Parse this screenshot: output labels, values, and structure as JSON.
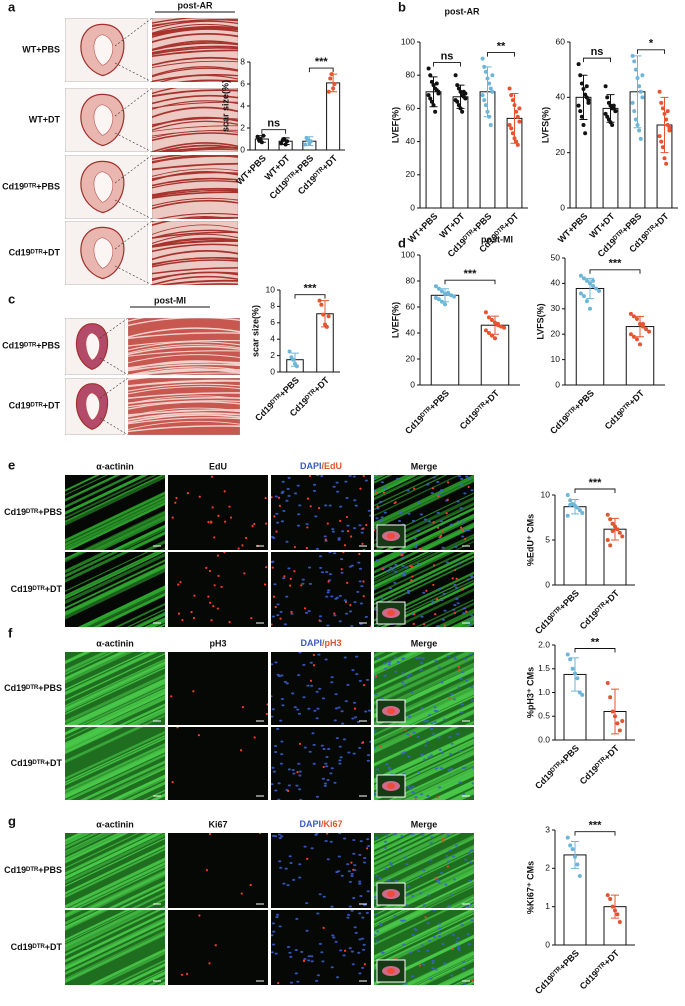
{
  "panels": {
    "a": {
      "letter": "a",
      "header": "post-AR",
      "rows": [
        "WT+PBS",
        "WT+DT",
        "Cd19ᴰᵀᴿ+PBS",
        "Cd19ᴰᵀᴿ+DT"
      ]
    },
    "b": {
      "letter": "b",
      "header": "post-AR"
    },
    "c": {
      "letter": "c",
      "header": "post-MI",
      "rows": [
        "Cd19ᴰᵀᴿ+PBS",
        "Cd19ᴰᵀᴿ+DT"
      ]
    },
    "d": {
      "letter": "d",
      "header": "post-MI"
    },
    "e": {
      "letter": "e",
      "columns": [
        "α-actinin",
        "EdU",
        [
          "DAPI",
          "/EdU"
        ],
        "Merge"
      ],
      "rows": [
        "Cd19ᴰᵀᴿ+PBS",
        "Cd19ᴰᵀᴿ+DT"
      ]
    },
    "f": {
      "letter": "f",
      "columns": [
        "α-actinin",
        "pH3",
        [
          "DAPI",
          "/pH3"
        ],
        "Merge"
      ],
      "rows": [
        "Cd19ᴰᵀᴿ+PBS",
        "Cd19ᴰᵀᴿ+DT"
      ]
    },
    "g": {
      "letter": "g",
      "columns": [
        "α-actinin",
        "Ki67",
        [
          "DAPI",
          "/Ki67"
        ],
        "Merge"
      ],
      "rows": [
        "Cd19ᴰᵀᴿ+PBS",
        "Cd19ᴰᵀᴿ+DT"
      ]
    }
  },
  "chart_data": [
    {
      "type": "bar",
      "ylabel": "scar size(%)",
      "categories": [
        "WT+PBS",
        "WT+DT",
        "Cd19ᴰᵀᴿ+PBS",
        "Cd19ᴰᵀᴿ+DT"
      ],
      "values": [
        1.0,
        0.8,
        0.8,
        6.1
      ],
      "errors": [
        0.3,
        0.3,
        0.4,
        0.8
      ],
      "points": [
        [
          1.2,
          0.9,
          1.0,
          0.7,
          1.3
        ],
        [
          0.6,
          0.9,
          1.0,
          0.5,
          0.8
        ],
        [
          0.5,
          1.1,
          0.9,
          0.6,
          0.8
        ],
        [
          5.3,
          6.5,
          6.9,
          5.6,
          6.0
        ]
      ],
      "colors": [
        "#111111",
        "#111111",
        "#6db6d9",
        "#e8532f"
      ],
      "ylim": [
        0,
        8
      ],
      "yticks": [
        0,
        2,
        4,
        6,
        8
      ],
      "annotations": [
        "ns",
        "***"
      ]
    },
    {
      "type": "bar",
      "ylabel": "LVEF(%)",
      "categories": [
        "WT+PBS",
        "WT+DT",
        "Cd19ᴰᵀᴿ+PBS",
        "Cd19ᴰᵀᴿ+DT"
      ],
      "values": [
        70,
        67,
        70,
        54
      ],
      "errors": [
        9,
        7,
        15,
        15
      ],
      "points": [
        [
          84,
          80,
          76,
          74,
          72,
          71,
          70,
          68,
          66,
          64,
          62,
          58,
          75,
          69
        ],
        [
          80,
          74,
          72,
          70,
          68,
          67,
          66,
          65,
          64,
          62,
          60,
          58,
          70,
          69
        ],
        [
          90,
          85,
          82,
          78,
          75,
          72,
          70,
          68,
          65,
          62,
          58,
          55,
          50,
          80
        ],
        [
          72,
          68,
          65,
          62,
          58,
          55,
          52,
          50,
          48,
          45,
          42,
          40,
          38,
          60
        ]
      ],
      "colors": [
        "#111111",
        "#111111",
        "#6db6d9",
        "#e8532f"
      ],
      "ylim": [
        0,
        100
      ],
      "yticks": [
        0,
        20,
        40,
        60,
        80,
        100
      ],
      "annotations": [
        "ns",
        "**"
      ]
    },
    {
      "type": "bar",
      "ylabel": "LVFS(%)",
      "categories": [
        "WT+PBS",
        "WT+DT",
        "Cd19ᴰᵀᴿ+PBS",
        "Cd19ᴰᵀᴿ+DT"
      ],
      "values": [
        40,
        36,
        42,
        30
      ],
      "errors": [
        8,
        5,
        13,
        10
      ],
      "points": [
        [
          52,
          48,
          45,
          43,
          41,
          40,
          38,
          37,
          35,
          33,
          30,
          27,
          44,
          39
        ],
        [
          44,
          40,
          38,
          37,
          36,
          36,
          35,
          34,
          33,
          32,
          31,
          30,
          37,
          35
        ],
        [
          55,
          53,
          50,
          47,
          44,
          42,
          40,
          38,
          35,
          32,
          30,
          28,
          25,
          48
        ],
        [
          42,
          38,
          36,
          34,
          32,
          30,
          28,
          26,
          24,
          22,
          18,
          16,
          35,
          29
        ]
      ],
      "colors": [
        "#111111",
        "#111111",
        "#6db6d9",
        "#e8532f"
      ],
      "ylim": [
        0,
        60
      ],
      "yticks": [
        0,
        20,
        40,
        60
      ],
      "annotations": [
        "ns",
        "*"
      ]
    },
    {
      "type": "bar",
      "ylabel": "scar size(%)",
      "categories": [
        "Cd19ᴰᵀᴿ+PBS",
        "Cd19ᴰᵀᴿ+DT"
      ],
      "values": [
        1.5,
        7.1
      ],
      "errors": [
        0.8,
        1.6
      ],
      "points": [
        [
          2.5,
          1.8,
          1.5,
          1.0,
          0.7
        ],
        [
          8.7,
          8.2,
          7.0,
          5.8,
          5.5,
          6.8
        ]
      ],
      "colors": [
        "#6db6d9",
        "#e8532f"
      ],
      "ylim": [
        0,
        10
      ],
      "yticks": [
        0,
        2,
        4,
        6,
        8,
        10
      ],
      "annotations": [
        "***"
      ]
    },
    {
      "type": "bar",
      "ylabel": "LVEF(%)",
      "categories": [
        "Cd19ᴰᵀᴿ+PBS",
        "Cd19ᴰᵀᴿ+DT"
      ],
      "values": [
        69,
        46
      ],
      "errors": [
        5,
        7
      ],
      "points": [
        [
          76,
          74,
          72,
          70,
          70,
          69,
          68,
          67,
          66,
          64,
          62,
          71
        ],
        [
          56,
          52,
          50,
          48,
          46,
          45,
          44,
          42,
          40,
          38,
          36,
          47
        ]
      ],
      "colors": [
        "#6db6d9",
        "#e8532f"
      ],
      "ylim": [
        0,
        100
      ],
      "yticks": [
        0,
        20,
        40,
        60,
        80,
        100
      ],
      "annotations": [
        "***"
      ]
    },
    {
      "type": "bar",
      "ylabel": "LVFS(%)",
      "categories": [
        "Cd19ᴰᵀᴿ+PBS",
        "Cd19ᴰᵀᴿ+DT"
      ],
      "values": [
        38,
        23
      ],
      "errors": [
        4,
        4
      ],
      "points": [
        [
          43,
          42,
          41,
          40,
          39,
          38,
          37,
          36,
          35,
          33,
          30,
          41
        ],
        [
          28,
          27,
          26,
          24,
          23,
          22,
          21,
          20,
          19,
          18,
          16,
          24
        ]
      ],
      "colors": [
        "#6db6d9",
        "#e8532f"
      ],
      "ylim": [
        0,
        50
      ],
      "yticks": [
        0,
        10,
        20,
        30,
        40,
        50
      ],
      "annotations": [
        "***"
      ]
    },
    {
      "type": "bar",
      "ylabel": "%EdU⁺ CMs",
      "categories": [
        "Cd19ᴰᵀᴿ+PBS",
        "Cd19ᴰᵀᴿ+DT"
      ],
      "values": [
        8.7,
        6.2
      ],
      "errors": [
        0.8,
        1.2
      ],
      "points": [
        [
          10.0,
          9.4,
          9.0,
          8.8,
          8.6,
          8.3,
          8.0,
          7.7,
          8.9
        ],
        [
          7.8,
          7.3,
          6.8,
          6.5,
          6.2,
          5.8,
          5.4,
          5.0,
          4.4,
          6.0
        ]
      ],
      "colors": [
        "#6db6d9",
        "#e8532f"
      ],
      "ylim": [
        0,
        10
      ],
      "yticks": [
        0,
        5,
        10
      ],
      "annotations": [
        "***"
      ]
    },
    {
      "type": "bar",
      "ylabel": "%pH3⁺ CMs",
      "categories": [
        "Cd19ᴰᵀᴿ+PBS",
        "Cd19ᴰᵀᴿ+DT"
      ],
      "values": [
        1.38,
        0.6
      ],
      "errors": [
        0.35,
        0.47
      ],
      "points": [
        [
          1.8,
          1.7,
          1.5,
          1.4,
          1.3,
          1.0,
          0.95
        ],
        [
          1.2,
          0.9,
          0.6,
          0.5,
          0.35,
          0.2,
          0.4
        ]
      ],
      "colors": [
        "#6db6d9",
        "#e8532f"
      ],
      "ylim": [
        0,
        2
      ],
      "yticks": [
        {
          "value": 0,
          "label": "0.0"
        },
        {
          "value": 0.5,
          "label": "0.5"
        },
        {
          "value": 1,
          "label": "1.0"
        },
        {
          "value": 1.5,
          "label": "1.5"
        },
        {
          "value": 2,
          "label": "2.0"
        }
      ],
      "annotations": [
        "**"
      ]
    },
    {
      "type": "bar",
      "ylabel": "%Ki67⁺ CMs",
      "categories": [
        "Cd19ᴰᵀᴿ+PBS",
        "Cd19ᴰᵀᴿ+DT"
      ],
      "values": [
        2.35,
        1.0
      ],
      "errors": [
        0.35,
        0.3
      ],
      "points": [
        [
          2.8,
          2.6,
          2.5,
          2.3,
          2.1,
          1.8
        ],
        [
          1.3,
          1.2,
          1.0,
          0.9,
          0.8,
          0.6
        ]
      ],
      "colors": [
        "#6db6d9",
        "#e8532f"
      ],
      "ylim": [
        0,
        3
      ],
      "yticks": [
        0,
        1,
        2,
        3
      ],
      "annotations": [
        "***"
      ]
    }
  ]
}
